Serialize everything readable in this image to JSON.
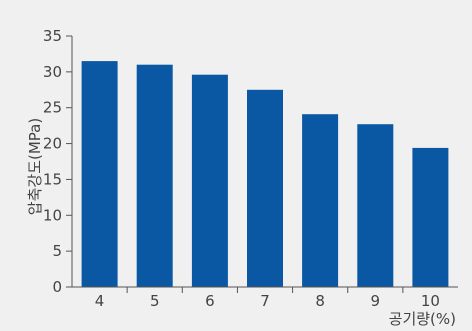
{
  "header_text": "",
  "chart_data": {
    "type": "bar",
    "title": "",
    "xlabel": "공기량(%)",
    "ylabel": "압축강도(MPa)",
    "categories": [
      "4",
      "5",
      "6",
      "7",
      "8",
      "9",
      "10"
    ],
    "values": [
      31.5,
      31.0,
      29.6,
      27.5,
      24.1,
      22.7,
      19.4
    ],
    "ylim": [
      0,
      35
    ],
    "yticks": [
      0,
      5,
      10,
      15,
      20,
      25,
      30,
      35
    ],
    "grid": false,
    "legend": "none",
    "bar_color": "#0a57a4",
    "axis_color": "#555555",
    "background_color": "#f0f0f0"
  }
}
